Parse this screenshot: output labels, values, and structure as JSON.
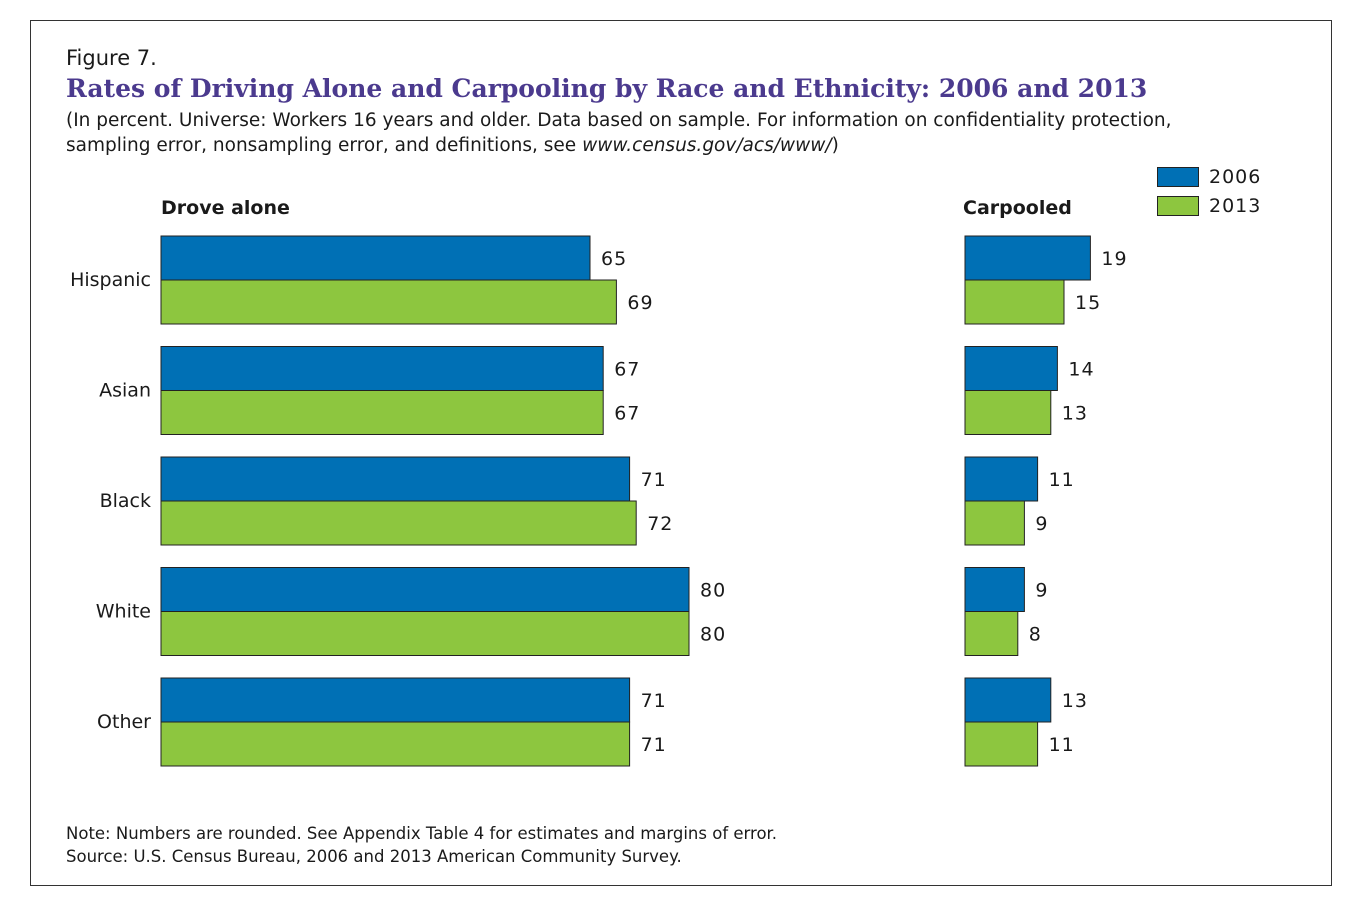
{
  "figure_label": "Figure 7.",
  "title": "Rates of Driving Alone and Carpooling by Race and Ethnicity: 2006 and 2013",
  "subtitle_line1": "(In percent. Universe: Workers 16 years and older. Data based on sample. For information on confidentiality protection,",
  "subtitle_line2_text": "sampling error, nonsampling error, and definitions, see ",
  "subtitle_line2_url": "www.census.gov/acs/www/",
  "subtitle_line2_close": ")",
  "note_line1": "Note: Numbers are rounded. See Appendix Table 4 for estimates and margins of error.",
  "note_line2": "Source: U.S. Census Bureau, 2006 and 2013 American Community Survey.",
  "colors": {
    "series_2006": "#0070b5",
    "series_2013": "#8dc63f",
    "title": "#4b3a8e"
  },
  "legend": [
    {
      "name": "2006",
      "color": "#0070b5"
    },
    {
      "name": "2013",
      "color": "#8dc63f"
    }
  ],
  "chart_data": [
    {
      "type": "bar",
      "orientation": "horizontal",
      "title": "Drove alone",
      "categories": [
        "Hispanic",
        "Asian",
        "Black",
        "White",
        "Other"
      ],
      "series": [
        {
          "name": "2006",
          "values": [
            65,
            67,
            71,
            80,
            71
          ]
        },
        {
          "name": "2013",
          "values": [
            69,
            67,
            72,
            80,
            71
          ]
        }
      ],
      "xlim": [
        0,
        100
      ],
      "grid": false,
      "legend_position": "top-right"
    },
    {
      "type": "bar",
      "orientation": "horizontal",
      "title": "Carpooled",
      "categories": [
        "Hispanic",
        "Asian",
        "Black",
        "White",
        "Other"
      ],
      "series": [
        {
          "name": "2006",
          "values": [
            19,
            14,
            11,
            9,
            13
          ]
        },
        {
          "name": "2013",
          "values": [
            15,
            13,
            9,
            8,
            11
          ]
        }
      ],
      "xlim": [
        0,
        100
      ],
      "grid": false,
      "legend_position": "top-right"
    }
  ]
}
